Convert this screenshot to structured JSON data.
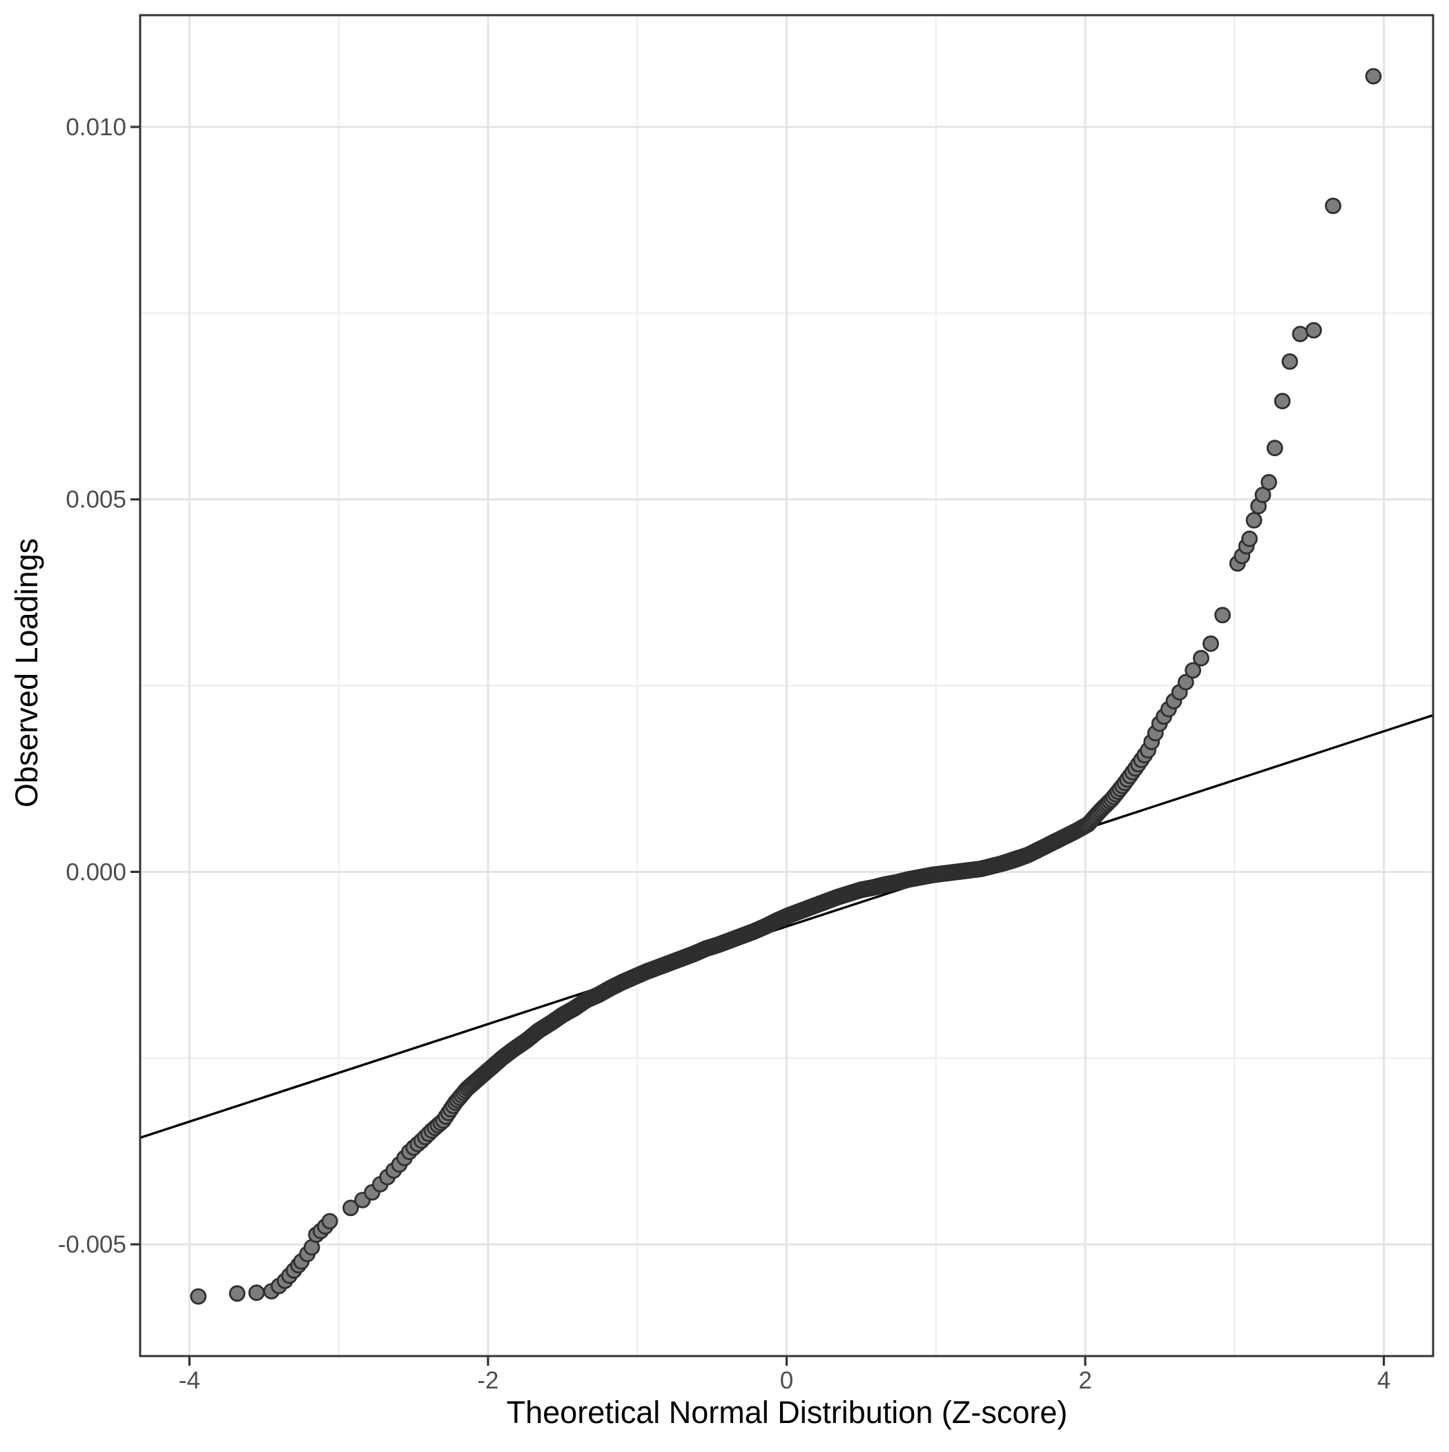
{
  "chart_data": {
    "type": "scatter",
    "subtype": "qq-plot",
    "title": "",
    "xlabel": "Theoretical Normal Distribution (Z-score)",
    "ylabel": "Observed Loadings",
    "xlim": [
      -4.33,
      4.33
    ],
    "ylim": [
      -0.0065,
      0.0115
    ],
    "grid": "on",
    "legend": "none",
    "x_ticks": {
      "values": [
        -4,
        -2,
        0,
        2,
        4
      ],
      "labels": [
        "-4",
        "-2",
        "0",
        "2",
        "4"
      ]
    },
    "y_ticks": {
      "values": [
        -0.005,
        0.0,
        0.005,
        0.01
      ],
      "labels": [
        "-0.005",
        "0.000",
        "0.005",
        "0.010"
      ]
    },
    "x_minor_ticks": [
      -3,
      -1,
      1,
      3
    ],
    "y_minor_ticks": [
      -0.0025,
      0.0025,
      0.0075
    ],
    "reference_line": {
      "intercept": -0.000733,
      "slope": 0.000655
    },
    "series": [
      {
        "name": "sample-quantiles-dense-band",
        "render": "qq-band",
        "n_points": 2000,
        "z_range": [
          -3.02,
          2.995
        ],
        "curve_anchors": [
          [
            -3.02,
            -0.00463
          ],
          [
            -2.95,
            -0.00455
          ],
          [
            -2.88,
            -0.00446
          ],
          [
            -2.8,
            -0.00435
          ],
          [
            -2.73,
            -0.00421
          ],
          [
            -2.66,
            -0.00407
          ],
          [
            -2.59,
            -0.00392
          ],
          [
            -2.52,
            -0.00374
          ],
          [
            -2.44,
            -0.0036
          ],
          [
            -2.37,
            -0.00346
          ],
          [
            -2.3,
            -0.00334
          ],
          [
            -2.22,
            -0.0031
          ],
          [
            -2.14,
            -0.00291
          ],
          [
            -2.06,
            -0.00277
          ],
          [
            -1.98,
            -0.00263
          ],
          [
            -1.9,
            -0.00249
          ],
          [
            -1.82,
            -0.00237
          ],
          [
            -1.74,
            -0.00226
          ],
          [
            -1.66,
            -0.00213
          ],
          [
            -1.58,
            -0.00203
          ],
          [
            -1.5,
            -0.00192
          ],
          [
            -1.42,
            -0.00183
          ],
          [
            -1.34,
            -0.00172
          ],
          [
            -1.26,
            -0.00165
          ],
          [
            -1.18,
            -0.00156
          ],
          [
            -1.1,
            -0.00148
          ],
          [
            -1.02,
            -0.00141
          ],
          [
            -0.94,
            -0.00134
          ],
          [
            -0.86,
            -0.00128
          ],
          [
            -0.78,
            -0.00122
          ],
          [
            -0.7,
            -0.00116
          ],
          [
            -0.62,
            -0.0011
          ],
          [
            -0.54,
            -0.00103
          ],
          [
            -0.46,
            -0.00098
          ],
          [
            -0.38,
            -0.00092
          ],
          [
            -0.3,
            -0.00086
          ],
          [
            -0.22,
            -0.0008
          ],
          [
            -0.14,
            -0.00073
          ],
          [
            -0.06,
            -0.00065
          ],
          [
            0.02,
            -0.00058
          ],
          [
            0.1,
            -0.00052
          ],
          [
            0.18,
            -0.00046
          ],
          [
            0.26,
            -0.0004
          ],
          [
            0.34,
            -0.00034
          ],
          [
            0.42,
            -0.00029
          ],
          [
            0.5,
            -0.00024
          ],
          [
            0.58,
            -0.00021
          ],
          [
            0.66,
            -0.00017
          ],
          [
            0.74,
            -0.00014
          ],
          [
            0.82,
            -0.0001
          ],
          [
            0.9,
            -7e-05
          ],
          [
            0.98,
            -4e-05
          ],
          [
            1.06,
            -2e-05
          ],
          [
            1.14,
            0.0
          ],
          [
            1.22,
            2e-05
          ],
          [
            1.3,
            4e-05
          ],
          [
            1.38,
            8e-05
          ],
          [
            1.46,
            0.00012
          ],
          [
            1.54,
            0.00017
          ],
          [
            1.62,
            0.00023
          ],
          [
            1.7,
            0.00031
          ],
          [
            1.78,
            0.00039
          ],
          [
            1.86,
            0.00047
          ],
          [
            1.94,
            0.00055
          ],
          [
            2.02,
            0.00064
          ],
          [
            2.1,
            0.00082
          ],
          [
            2.18,
            0.00098
          ],
          [
            2.26,
            0.00118
          ],
          [
            2.34,
            0.0014
          ],
          [
            2.42,
            0.00163
          ],
          [
            2.5,
            0.002
          ],
          [
            2.58,
            0.00225
          ],
          [
            2.66,
            0.0025
          ],
          [
            2.72,
            0.0027
          ],
          [
            2.78,
            0.00288
          ],
          [
            2.83,
            0.00302
          ],
          [
            2.87,
            0.00318
          ],
          [
            2.9,
            0.0033
          ],
          [
            2.93,
            0.00352
          ],
          [
            2.95,
            0.0037
          ],
          [
            2.97,
            0.0039
          ],
          [
            2.995,
            0.00407
          ]
        ]
      },
      {
        "name": "lower-tail-points",
        "render": "points",
        "points": [
          [
            -3.94,
            -0.0057
          ],
          [
            -3.68,
            -0.00566
          ],
          [
            -3.55,
            -0.00565
          ],
          [
            -3.45,
            -0.00563
          ],
          [
            -3.4,
            -0.00556
          ],
          [
            -3.36,
            -0.00549
          ],
          [
            -3.33,
            -0.00542
          ],
          [
            -3.3,
            -0.00535
          ],
          [
            -3.27,
            -0.00528
          ],
          [
            -3.25,
            -0.00523
          ],
          [
            -3.21,
            -0.00513
          ],
          [
            -3.18,
            -0.00504
          ],
          [
            -3.15,
            -0.00487
          ],
          [
            -3.12,
            -0.00482
          ],
          [
            -3.09,
            -0.00476
          ],
          [
            -3.06,
            -0.00469
          ]
        ]
      },
      {
        "name": "upper-tail-points",
        "render": "points",
        "points": [
          [
            3.02,
            0.00414
          ],
          [
            3.05,
            0.00424
          ],
          [
            3.08,
            0.00437
          ],
          [
            3.1,
            0.00447
          ],
          [
            3.13,
            0.00472
          ],
          [
            3.16,
            0.00491
          ],
          [
            3.19,
            0.00506
          ],
          [
            3.23,
            0.00523
          ],
          [
            3.27,
            0.00569
          ],
          [
            3.32,
            0.00632
          ],
          [
            3.37,
            0.00685
          ],
          [
            3.44,
            0.00722
          ],
          [
            3.53,
            0.00727
          ],
          [
            3.66,
            0.00894
          ],
          [
            3.93,
            0.01068
          ]
        ]
      }
    ],
    "style": {
      "background": "#ffffff",
      "panel_background": "#ffffff",
      "panel_border_color": "#333333",
      "grid_major_color": "#e4e4e4",
      "grid_minor_color": "#eeeeee",
      "tick_mark_color": "#333333",
      "tick_label_color": "#4d4d4d",
      "axis_title_color": "#000000",
      "point_fill": "#7d7d7d",
      "point_stroke": "#2f2f2f",
      "line_color": "#000000"
    }
  }
}
